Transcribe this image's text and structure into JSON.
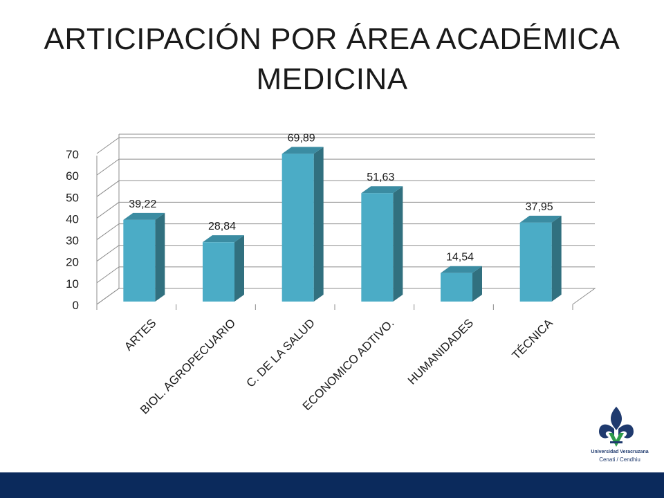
{
  "title_line1": "ARTICIPACIÓN POR ÁREA ACADÉMICA",
  "title_line2": "MEDICINA",
  "logo": {
    "name": "Universidad Veracruzana",
    "subtitle": "Cenati / Cendhiu"
  },
  "colors": {
    "bar_front": "#4bacc6",
    "bar_side": "#31707f",
    "bar_top": "#3b8ca2",
    "grid": "#8c8c8c",
    "footer": "#0b2a5c"
  },
  "chart_data": {
    "type": "bar",
    "categories": [
      "ARTES",
      "BIOL. AGROPECUARIO",
      "C. DE LA SALUD",
      "ECONOMICO ADTIVO.",
      "HUMANIDADES",
      "TÉCNICA"
    ],
    "values": [
      39.22,
      28.84,
      69.89,
      51.63,
      14.54,
      37.95
    ],
    "data_labels": [
      "39,22",
      "28,84",
      "69,89",
      "51,63",
      "14,54",
      "37,95"
    ],
    "yticks": [
      "0",
      "10",
      "20",
      "30",
      "40",
      "50",
      "60",
      "70"
    ],
    "ylim": [
      0,
      70
    ],
    "grid": true,
    "style": "3d-column"
  }
}
